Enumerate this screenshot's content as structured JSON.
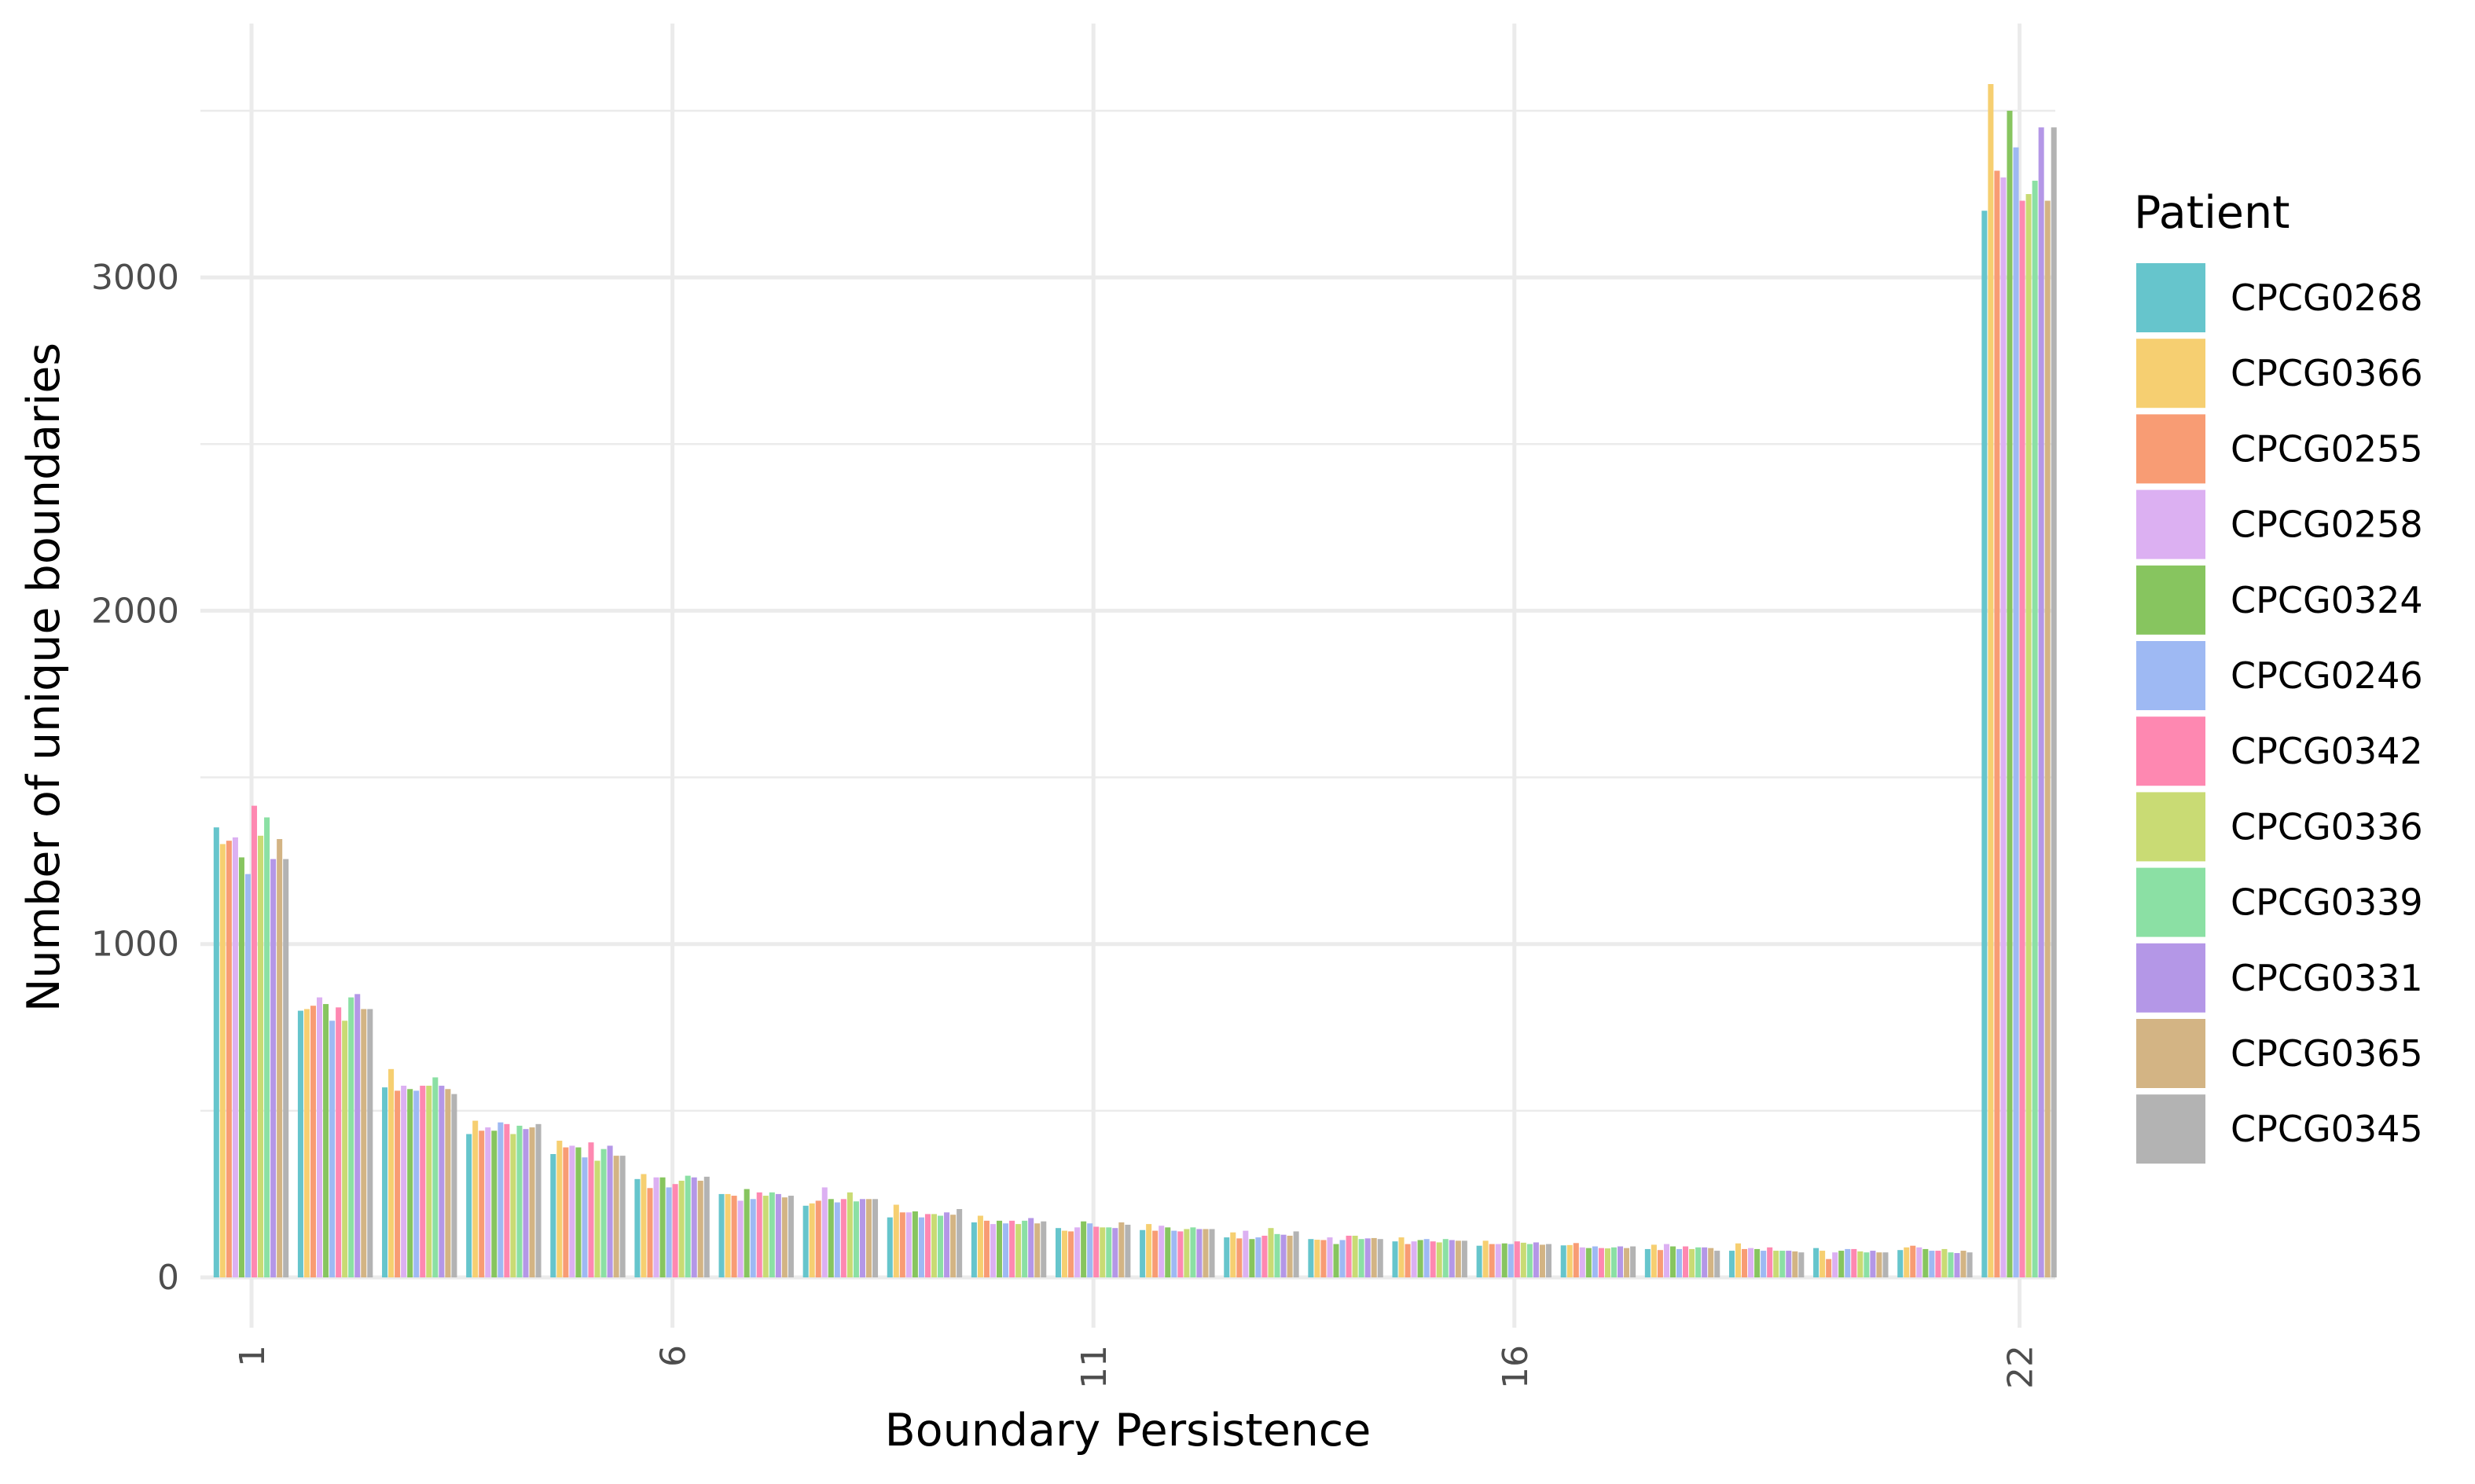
{
  "chart_data": {
    "type": "bar",
    "xlabel": "Boundary Persistence",
    "ylabel": "Number of unique boundaries",
    "ylim": [
      -170,
      3700
    ],
    "yticks": [
      0,
      1000,
      2000,
      3000
    ],
    "yticks_labels": [
      "0",
      "1000",
      "2000",
      "3000"
    ],
    "xticks": [
      1,
      6,
      11,
      16,
      22
    ],
    "xticks_labels": [
      "1",
      "6",
      "11",
      "16",
      "22"
    ],
    "grid": true,
    "legend": {
      "title": "Patient",
      "position": "right"
    },
    "categories": [
      1,
      2,
      3,
      4,
      5,
      6,
      7,
      8,
      9,
      10,
      11,
      12,
      13,
      14,
      15,
      16,
      17,
      18,
      19,
      20,
      21,
      22
    ],
    "series": [
      {
        "name": "CPCG0268",
        "color": "#66C5CC",
        "values": [
          1350,
          800,
          570,
          430,
          370,
          295,
          250,
          215,
          180,
          165,
          148,
          142,
          120,
          115,
          108,
          95,
          96,
          85,
          80,
          88,
          82,
          3200
        ]
      },
      {
        "name": "CPCG0366",
        "color": "#F6CF71",
        "values": [
          1300,
          805,
          625,
          470,
          410,
          310,
          250,
          222,
          218,
          185,
          140,
          160,
          135,
          113,
          120,
          110,
          97,
          98,
          102,
          80,
          90,
          3580
        ]
      },
      {
        "name": "CPCG0255",
        "color": "#F89C74",
        "values": [
          1310,
          815,
          560,
          440,
          390,
          268,
          245,
          230,
          195,
          170,
          138,
          140,
          117,
          112,
          100,
          100,
          103,
          82,
          85,
          55,
          95,
          3320
        ]
      },
      {
        "name": "CPCG0258",
        "color": "#DCB0F2",
        "values": [
          1320,
          840,
          575,
          450,
          395,
          300,
          230,
          270,
          195,
          160,
          150,
          155,
          140,
          120,
          108,
          100,
          90,
          100,
          88,
          75,
          90,
          3300
        ]
      },
      {
        "name": "CPCG0324",
        "color": "#87C55F",
        "values": [
          1260,
          820,
          565,
          440,
          390,
          300,
          265,
          235,
          198,
          170,
          168,
          150,
          115,
          100,
          112,
          102,
          88,
          93,
          85,
          80,
          85,
          3500
        ]
      },
      {
        "name": "CPCG0246",
        "color": "#9EB9F3",
        "values": [
          1210,
          770,
          560,
          465,
          360,
          270,
          235,
          225,
          180,
          162,
          162,
          140,
          120,
          112,
          115,
          100,
          93,
          85,
          80,
          85,
          80,
          3390
        ]
      },
      {
        "name": "CPCG0342",
        "color": "#FE88B1",
        "values": [
          1415,
          810,
          575,
          460,
          405,
          280,
          255,
          235,
          190,
          170,
          152,
          138,
          125,
          125,
          108,
          108,
          88,
          93,
          90,
          85,
          80,
          3230
        ]
      },
      {
        "name": "CPCG0336",
        "color": "#C9DB74",
        "values": [
          1325,
          770,
          575,
          430,
          350,
          290,
          245,
          255,
          190,
          160,
          150,
          145,
          148,
          125,
          105,
          104,
          87,
          85,
          80,
          78,
          85,
          3250
        ]
      },
      {
        "name": "CPCG0339",
        "color": "#8BE0A4",
        "values": [
          1380,
          840,
          600,
          455,
          385,
          305,
          255,
          228,
          185,
          170,
          150,
          150,
          130,
          115,
          115,
          100,
          90,
          90,
          80,
          75,
          75,
          3290
        ]
      },
      {
        "name": "CPCG0331",
        "color": "#B497E7",
        "values": [
          1255,
          850,
          575,
          445,
          395,
          300,
          250,
          235,
          195,
          178,
          148,
          145,
          128,
          117,
          112,
          105,
          93,
          90,
          80,
          80,
          73,
          3450
        ]
      },
      {
        "name": "CPCG0365",
        "color": "#D3B484",
        "values": [
          1315,
          805,
          565,
          450,
          365,
          290,
          240,
          235,
          188,
          162,
          165,
          145,
          125,
          118,
          110,
          98,
          88,
          88,
          78,
          75,
          80,
          3230
        ]
      },
      {
        "name": "CPCG0345",
        "color": "#B3B3B3",
        "values": [
          1255,
          805,
          550,
          460,
          365,
          302,
          245,
          235,
          205,
          168,
          158,
          145,
          138,
          115,
          110,
          100,
          93,
          80,
          75,
          75,
          75,
          3450
        ]
      }
    ]
  }
}
